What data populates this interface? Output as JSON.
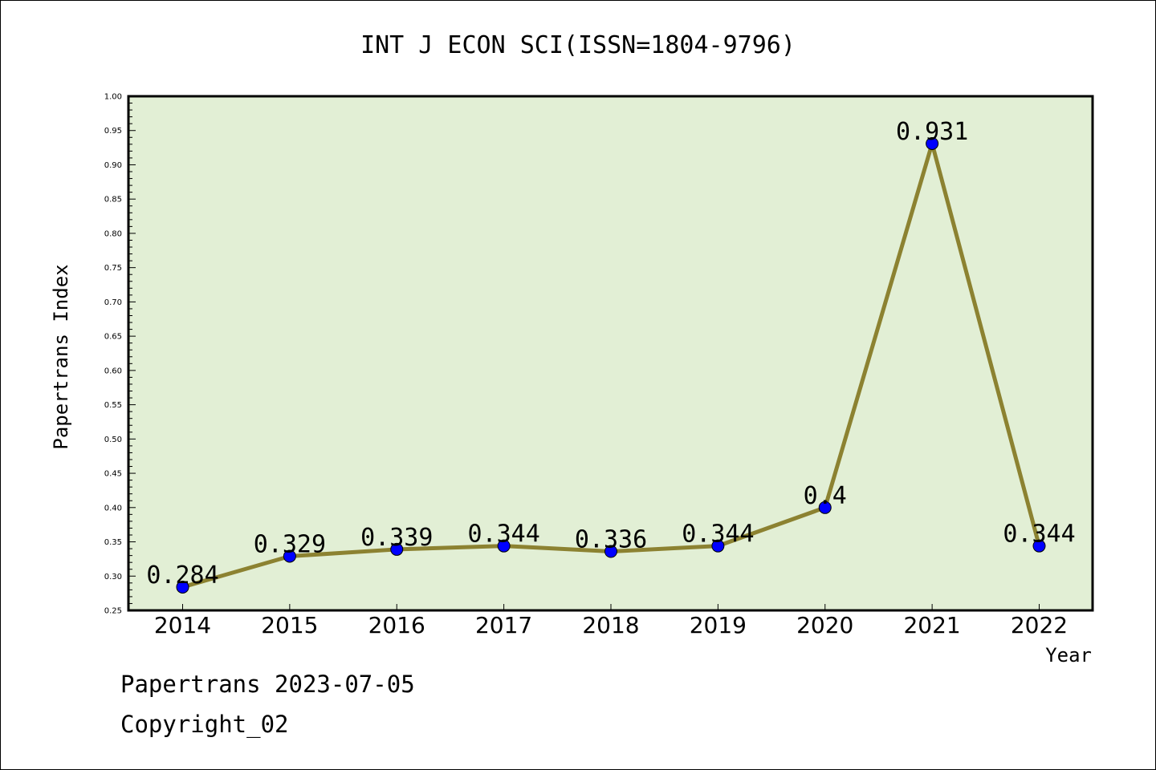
{
  "chart_data": {
    "type": "line",
    "title": "INT J ECON SCI(ISSN=1804-9796)",
    "xlabel": "Year",
    "ylabel": "Papertrans Index",
    "categories": [
      "2014",
      "2015",
      "2016",
      "2017",
      "2018",
      "2019",
      "2020",
      "2021",
      "2022"
    ],
    "series": [
      {
        "values": [
          0.284,
          0.329,
          0.339,
          0.344,
          0.336,
          0.344,
          0.4,
          0.931,
          0.344
        ],
        "labels": [
          "0.284",
          "0.329",
          "0.339",
          "0.344",
          "0.336",
          "0.344",
          "0.4",
          "0.931",
          "0.344"
        ]
      }
    ],
    "ylim": [
      0.25,
      1.0
    ],
    "yticks": [
      "0.25",
      "0.30",
      "0.35",
      "0.40",
      "0.45",
      "0.50",
      "0.55",
      "0.60",
      "0.65",
      "0.70",
      "0.75",
      "0.80",
      "0.85",
      "0.90",
      "0.95",
      "1.00"
    ],
    "grid": false,
    "colors": {
      "plot_background": "#e2efd5",
      "line": "#8c8231",
      "marker": "#0000ff"
    }
  },
  "footer": {
    "date_line": "Papertrans 2023-07-05",
    "copyright": "Copyright_02"
  }
}
